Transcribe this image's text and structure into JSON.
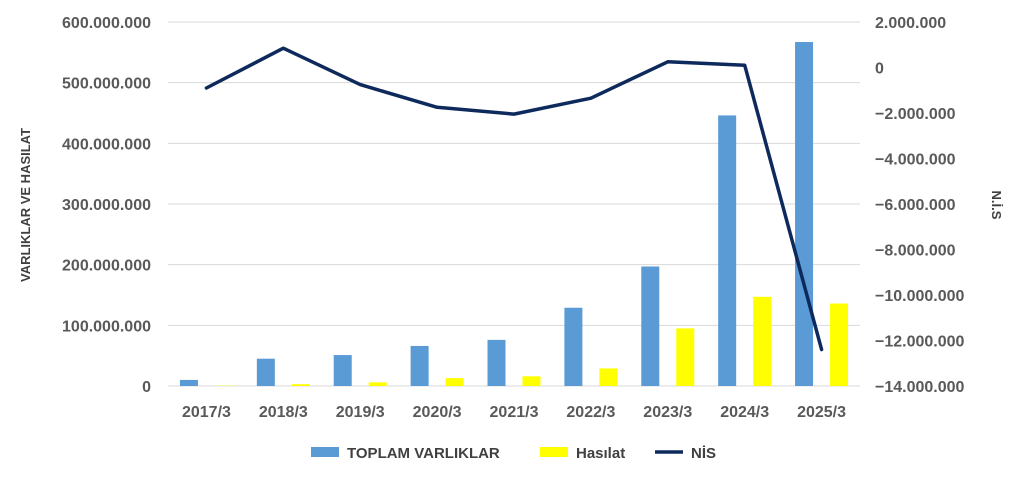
{
  "chart_data": {
    "type": "bar",
    "categories": [
      "2017/3",
      "2018/3",
      "2019/3",
      "2020/3",
      "2021/3",
      "2022/3",
      "2023/3",
      "2024/3",
      "2025/3"
    ],
    "series": [
      {
        "name": "TOPLAM VARLIKLAR",
        "type": "bar",
        "axis": "left",
        "color": "#5B9BD5",
        "values": [
          10000000,
          45000000,
          51000000,
          66000000,
          76000000,
          129000000,
          197000000,
          446000000,
          567000000
        ]
      },
      {
        "name": "Hasılat",
        "type": "bar",
        "axis": "left",
        "color": "#FFFF00",
        "values": [
          500000,
          3000000,
          6000000,
          13000000,
          16000000,
          29000000,
          95000000,
          147000000,
          136000000
        ]
      },
      {
        "name": "NİS",
        "type": "line",
        "axis": "right",
        "color": "#0E2A5C",
        "values": [
          -900000,
          850000,
          -750000,
          -1750000,
          -2050000,
          -1350000,
          250000,
          100000,
          -12400000
        ]
      }
    ],
    "ylabel": "VARLIKLAR VE HASILAT",
    "y2label": "N.İ.S",
    "ylim": [
      0,
      600000000
    ],
    "y2lim": [
      -14000000,
      2000000
    ],
    "yticks": [
      "0",
      "100.000.000",
      "200.000.000",
      "300.000.000",
      "400.000.000",
      "500.000.000",
      "600.000.000"
    ],
    "y2ticks": [
      "-14.000.000",
      "-12.000.000",
      "-10.000.000",
      "-8.000.000",
      "-6.000.000",
      "-4.000.000",
      "-2.000.000",
      "0",
      "2.000.000"
    ],
    "grid": true,
    "legend": "bottom",
    "grid_color": "#D9D9D9"
  }
}
